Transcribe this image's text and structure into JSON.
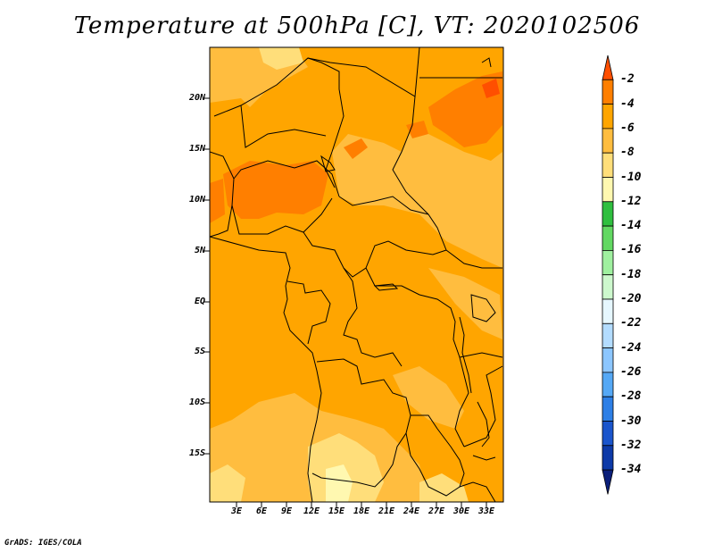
{
  "title": "Temperature at 500hPa [C], VT: 2020102506",
  "footer": "GrADS: IGES/COLA",
  "lat_labels": [
    "20N",
    "15N",
    "10N",
    "5N",
    "EQ",
    "5S",
    "10S",
    "15S"
  ],
  "lon_labels": [
    "3E",
    "6E",
    "9E",
    "12E",
    "15E",
    "18E",
    "21E",
    "24E",
    "27E",
    "30E",
    "33E"
  ],
  "colorbar": {
    "labels": [
      "-2",
      "-4",
      "-6",
      "-8",
      "-10",
      "-12",
      "-14",
      "-16",
      "-18",
      "-20",
      "-22",
      "-24",
      "-26",
      "-28",
      "-30",
      "-32",
      "-34"
    ],
    "colors": [
      "#ff4f00",
      "#ff7f00",
      "#ffa500",
      "#ffbd3f",
      "#ffde7a",
      "#fff8b0",
      "#2fbf3f",
      "#62d862",
      "#9ff09f",
      "#cdf8cd",
      "#e6f7ff",
      "#b3dcff",
      "#8cc6ff",
      "#55a8f5",
      "#2d7fe6",
      "#1a55cc",
      "#0d3aa8",
      "#0b1f7a"
    ]
  },
  "map": {
    "variable": "Temperature at 500hPa",
    "units": "C",
    "valid_time": "2020102506",
    "fill_colors": {
      "minus4_to_minus2": "#ff7f00",
      "minus6_to_minus4": "#ffa500",
      "minus8_to_minus6": "#ffbd3f",
      "minus10_to_minus8": "#ffde7a",
      "minus12_to_minus10": "#fff8b0"
    }
  }
}
